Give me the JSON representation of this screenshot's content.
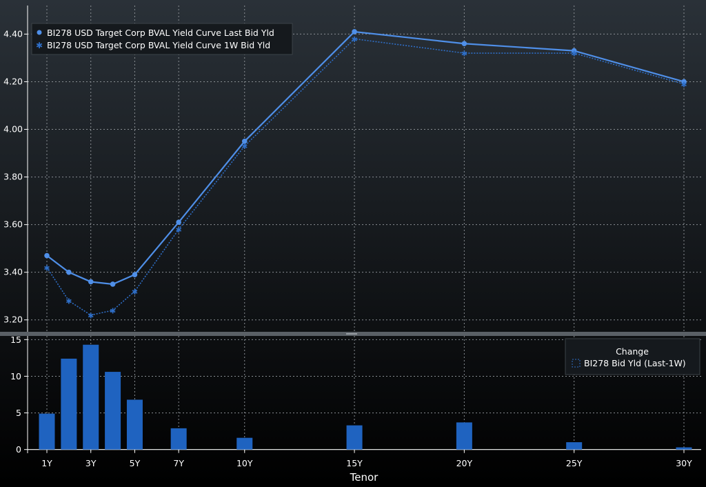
{
  "colors": {
    "background_top": "#2a3138",
    "background_bottom": "#000000",
    "grid": "#8a8f94",
    "axis_text": "#ffffff",
    "series_last": "#4f8fe8",
    "series_1w": "#2f6fc8",
    "bar_fill": "#1f63c0",
    "legend_bg": "#15191d"
  },
  "chart_data": [
    {
      "type": "line",
      "x": [
        "1Y",
        "2Y",
        "3Y",
        "4Y",
        "5Y",
        "7Y",
        "10Y",
        "15Y",
        "20Y",
        "25Y",
        "30Y"
      ],
      "x_years": [
        1,
        2,
        3,
        4,
        5,
        7,
        10,
        15,
        20,
        25,
        30
      ],
      "series": [
        {
          "name": "BI278 USD Target Corp BVAL Yield Curve Last Bid Yld",
          "values": [
            3.47,
            3.4,
            3.36,
            3.35,
            3.39,
            3.61,
            3.95,
            4.41,
            4.36,
            4.33,
            4.2
          ]
        },
        {
          "name": "BI278 USD Target Corp BVAL Yield Curve 1W Bid Yld",
          "values": [
            3.42,
            3.28,
            3.22,
            3.24,
            3.32,
            3.58,
            3.93,
            4.38,
            4.32,
            4.32,
            4.19
          ]
        }
      ],
      "yticks": [
        "3.20",
        "3.40",
        "3.60",
        "3.80",
        "4.00",
        "4.20",
        "4.40"
      ],
      "ylim": [
        3.15,
        4.52
      ],
      "legend_position": "top-left",
      "grid": true
    },
    {
      "type": "bar",
      "x": [
        "1Y",
        "2Y",
        "3Y",
        "4Y",
        "5Y",
        "7Y",
        "10Y",
        "15Y",
        "20Y",
        "25Y",
        "30Y"
      ],
      "x_years": [
        1,
        2,
        3,
        4,
        5,
        7,
        10,
        15,
        20,
        25,
        30
      ],
      "values": [
        4.9,
        12.4,
        14.3,
        10.6,
        6.8,
        2.9,
        1.6,
        3.3,
        3.7,
        1.0,
        0.3
      ],
      "legend_title": "Change",
      "series_name": "BI278 Bid Yld (Last-1W)",
      "yticks": [
        "0",
        "5",
        "10",
        "15"
      ],
      "ylim": [
        -0.5,
        15.5
      ],
      "xticks": [
        "1Y",
        "3Y",
        "5Y",
        "7Y",
        "10Y",
        "15Y",
        "20Y",
        "25Y",
        "30Y"
      ],
      "xlabel": "Tenor",
      "legend_position": "top-right",
      "grid": true
    }
  ]
}
